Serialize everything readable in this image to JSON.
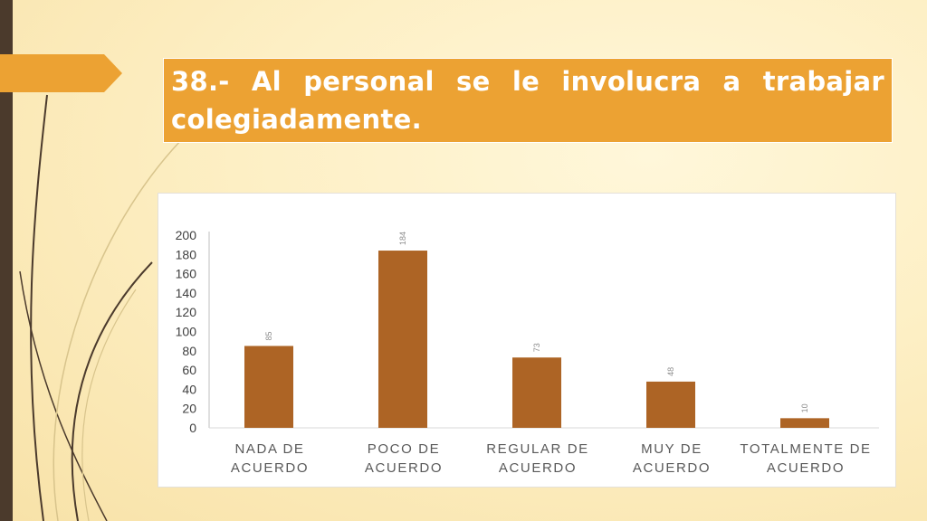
{
  "slide": {
    "title": "38.- Al personal se le involucra a trabajar colegiadamente."
  },
  "colors": {
    "title_background": "#eca233",
    "bar": "#ad6425",
    "left_bar": "#4b3a2c"
  },
  "chart_data": {
    "type": "bar",
    "categories": [
      [
        "NADA DE",
        "ACUERDO"
      ],
      [
        "POCO DE",
        "ACUERDO"
      ],
      [
        "REGULAR DE",
        "ACUERDO"
      ],
      [
        "MUY DE",
        "ACUERDO"
      ],
      [
        "TOTALMENTE DE",
        "ACUERDO"
      ]
    ],
    "values": [
      85,
      184,
      73,
      48,
      10
    ],
    "ylim": [
      0,
      200
    ],
    "yticks": [
      0,
      20,
      40,
      60,
      80,
      100,
      120,
      140,
      160,
      180,
      200
    ],
    "grid": false,
    "data_labels": true
  }
}
